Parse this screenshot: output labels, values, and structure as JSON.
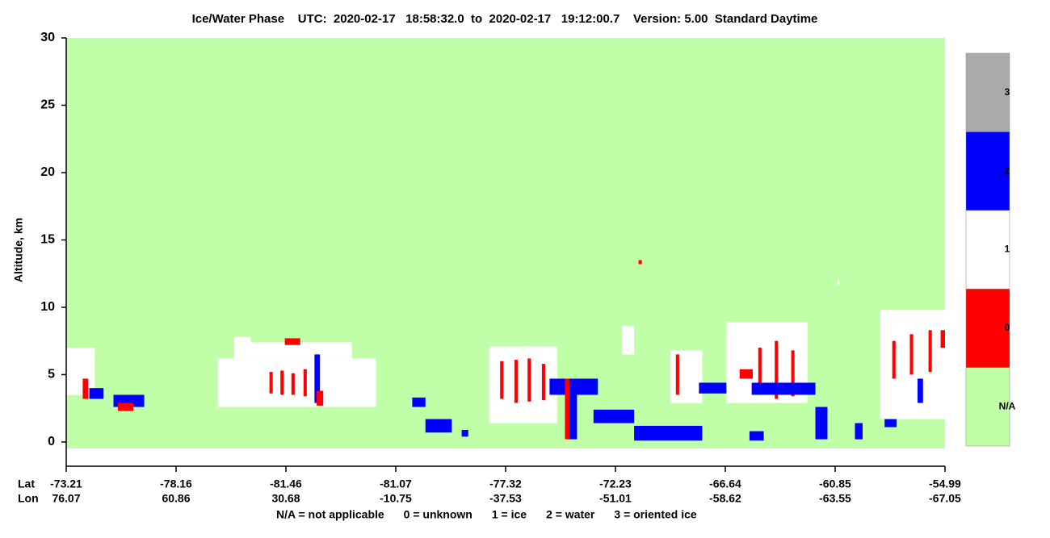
{
  "chart_data": {
    "type": "phase-curtain",
    "title": "Ice/Water Phase    UTC:  2020-02-17   18:58:32.0  to  2020-02-17   19:12:00.7    Version: 5.00  Standard Daytime",
    "y_label": "Altitude, km",
    "ylim": [
      -1.8,
      30
    ],
    "yticks": [
      0,
      5,
      10,
      15,
      20,
      25,
      30
    ],
    "xlim": [
      0,
      8
    ],
    "x_row_labels": [
      "Lat",
      "Lon"
    ],
    "xticks": [
      {
        "value": 0,
        "label": "-73.21",
        "lon": "76.07"
      },
      {
        "value": 1,
        "label": "-78.16",
        "lon": "60.86"
      },
      {
        "value": 2,
        "label": "-81.46",
        "lon": "30.68"
      },
      {
        "value": 3,
        "label": "-81.07",
        "lon": "-10.75"
      },
      {
        "value": 4,
        "label": "-77.32",
        "lon": "-37.53"
      },
      {
        "value": 5,
        "label": "-72.23",
        "lon": "-51.01"
      },
      {
        "value": 6,
        "label": "-66.64",
        "lon": "-58.62"
      },
      {
        "value": 7,
        "label": "-60.85",
        "lon": "-63.55"
      },
      {
        "value": 8,
        "label": "-54.99",
        "lon": "-67.05"
      }
    ],
    "background_color": "#c0ffa8",
    "colorbar": {
      "labels": [
        "N/A",
        "0",
        "1",
        "2",
        "3"
      ],
      "colors": [
        "#c0ffa8",
        "#ff0000",
        "#ffffff",
        "#0000ff",
        "#aaaaaa"
      ]
    },
    "legend": [
      "N/A = not applicable",
      "0 = unknown",
      "1 = ice",
      "2 = water",
      "3 = oriented ice"
    ],
    "regions": [
      {
        "x": [
          0,
          0.26
        ],
        "y": [
          3.5,
          7
        ],
        "phase": 1
      },
      {
        "x": [
          0.15,
          0.2
        ],
        "y": [
          3.2,
          4.7
        ],
        "phase": 0
      },
      {
        "x": [
          0.21,
          0.34
        ],
        "y": [
          3.2,
          4
        ],
        "phase": 2
      },
      {
        "x": [
          0.43,
          0.71
        ],
        "y": [
          2.6,
          3.5
        ],
        "phase": 2
      },
      {
        "x": [
          0.47,
          0.61
        ],
        "y": [
          2.3,
          2.9
        ],
        "phase": 0
      },
      {
        "x": [
          1.38,
          2.82
        ],
        "y": [
          2.6,
          6.2
        ],
        "phase": 1
      },
      {
        "x": [
          1.53,
          2.6
        ],
        "y": [
          6.2,
          7.4
        ],
        "phase": 1
      },
      {
        "x": [
          1.53,
          1.68
        ],
        "y": [
          7,
          7.8
        ],
        "phase": 1
      },
      {
        "x": [
          1.99,
          2.13
        ],
        "y": [
          7.2,
          7.7
        ],
        "phase": 0
      },
      {
        "x": [
          1.85,
          1.88
        ],
        "y": [
          3.6,
          5.2
        ],
        "phase": 0
      },
      {
        "x": [
          1.95,
          1.98
        ],
        "y": [
          3.5,
          5.3
        ],
        "phase": 0
      },
      {
        "x": [
          2.05,
          2.08
        ],
        "y": [
          3.5,
          5.1
        ],
        "phase": 0
      },
      {
        "x": [
          2.16,
          2.19
        ],
        "y": [
          3.4,
          5.4
        ],
        "phase": 0
      },
      {
        "x": [
          2.26,
          2.31
        ],
        "y": [
          2.9,
          6.5
        ],
        "phase": 2
      },
      {
        "x": [
          2.28,
          2.34
        ],
        "y": [
          2.7,
          3.8
        ],
        "phase": 0
      },
      {
        "x": [
          3.15,
          3.27
        ],
        "y": [
          2.6,
          3.3
        ],
        "phase": 2
      },
      {
        "x": [
          3.27,
          3.51
        ],
        "y": [
          0.7,
          1.7
        ],
        "phase": 2
      },
      {
        "x": [
          3.6,
          3.66
        ],
        "y": [
          0.4,
          0.9
        ],
        "phase": 2
      },
      {
        "x": [
          3.85,
          4.47
        ],
        "y": [
          1.4,
          7.1
        ],
        "phase": 1
      },
      {
        "x": [
          3.95,
          3.98
        ],
        "y": [
          3.2,
          6
        ],
        "phase": 0
      },
      {
        "x": [
          4.08,
          4.11
        ],
        "y": [
          2.9,
          6.1
        ],
        "phase": 0
      },
      {
        "x": [
          4.2,
          4.23
        ],
        "y": [
          3,
          6.2
        ],
        "phase": 0
      },
      {
        "x": [
          4.33,
          4.36
        ],
        "y": [
          3.1,
          5.8
        ],
        "phase": 0
      },
      {
        "x": [
          4.4,
          4.84
        ],
        "y": [
          3.5,
          4.7
        ],
        "phase": 2
      },
      {
        "x": [
          4.57,
          4.65
        ],
        "y": [
          0.2,
          4.2
        ],
        "phase": 2
      },
      {
        "x": [
          4.54,
          4.58
        ],
        "y": [
          0.2,
          4.7
        ],
        "phase": 0
      },
      {
        "x": [
          4.8,
          5.17
        ],
        "y": [
          1.4,
          2.4
        ],
        "phase": 2
      },
      {
        "x": [
          5.17,
          5.79
        ],
        "y": [
          0.1,
          1.2
        ],
        "phase": 2
      },
      {
        "x": [
          5.06,
          5.17
        ],
        "y": [
          6.5,
          8.6
        ],
        "phase": 1
      },
      {
        "x": [
          5.5,
          5.79
        ],
        "y": [
          2.9,
          6.8
        ],
        "phase": 1
      },
      {
        "x": [
          5.55,
          5.58
        ],
        "y": [
          3.5,
          6.5
        ],
        "phase": 0
      },
      {
        "x": [
          5.76,
          6.24
        ],
        "y": [
          3.6,
          4.4
        ],
        "phase": 2
      },
      {
        "x": [
          6.01,
          6.75
        ],
        "y": [
          2.9,
          8.9
        ],
        "phase": 1
      },
      {
        "x": [
          6.13,
          6.25
        ],
        "y": [
          4.7,
          5.4
        ],
        "phase": 0
      },
      {
        "x": [
          6.3,
          6.33
        ],
        "y": [
          3.5,
          7
        ],
        "phase": 0
      },
      {
        "x": [
          6.45,
          6.48
        ],
        "y": [
          3.2,
          7.5
        ],
        "phase": 0
      },
      {
        "x": [
          6.6,
          6.63
        ],
        "y": [
          3.4,
          6.8
        ],
        "phase": 0
      },
      {
        "x": [
          6.24,
          6.82
        ],
        "y": [
          3.5,
          4.4
        ],
        "phase": 2
      },
      {
        "x": [
          6.82,
          6.93
        ],
        "y": [
          0.2,
          2.6
        ],
        "phase": 2
      },
      {
        "x": [
          6.22,
          6.35
        ],
        "y": [
          0.1,
          0.8
        ],
        "phase": 2
      },
      {
        "x": [
          7.18,
          7.25
        ],
        "y": [
          0.2,
          1.4
        ],
        "phase": 2
      },
      {
        "x": [
          7.45,
          7.56
        ],
        "y": [
          1.1,
          1.8
        ],
        "phase": 2
      },
      {
        "x": [
          7.41,
          8
        ],
        "y": [
          1.7,
          9.8
        ],
        "phase": 1
      },
      {
        "x": [
          7.52,
          7.55
        ],
        "y": [
          4.7,
          7.5
        ],
        "phase": 0
      },
      {
        "x": [
          7.68,
          7.71
        ],
        "y": [
          5,
          8
        ],
        "phase": 0
      },
      {
        "x": [
          7.85,
          7.88
        ],
        "y": [
          5.2,
          8.3
        ],
        "phase": 0
      },
      {
        "x": [
          7.96,
          8
        ],
        "y": [
          7,
          8.3
        ],
        "phase": 0
      },
      {
        "x": [
          7.75,
          7.8
        ],
        "y": [
          2.9,
          4.7
        ],
        "phase": 2
      },
      {
        "x": [
          5.21,
          5.24
        ],
        "y": [
          13.2,
          13.5
        ],
        "phase": 0
      },
      {
        "x": [
          7.02,
          7.04
        ],
        "y": [
          11.6,
          12
        ],
        "phase": 1
      }
    ]
  }
}
